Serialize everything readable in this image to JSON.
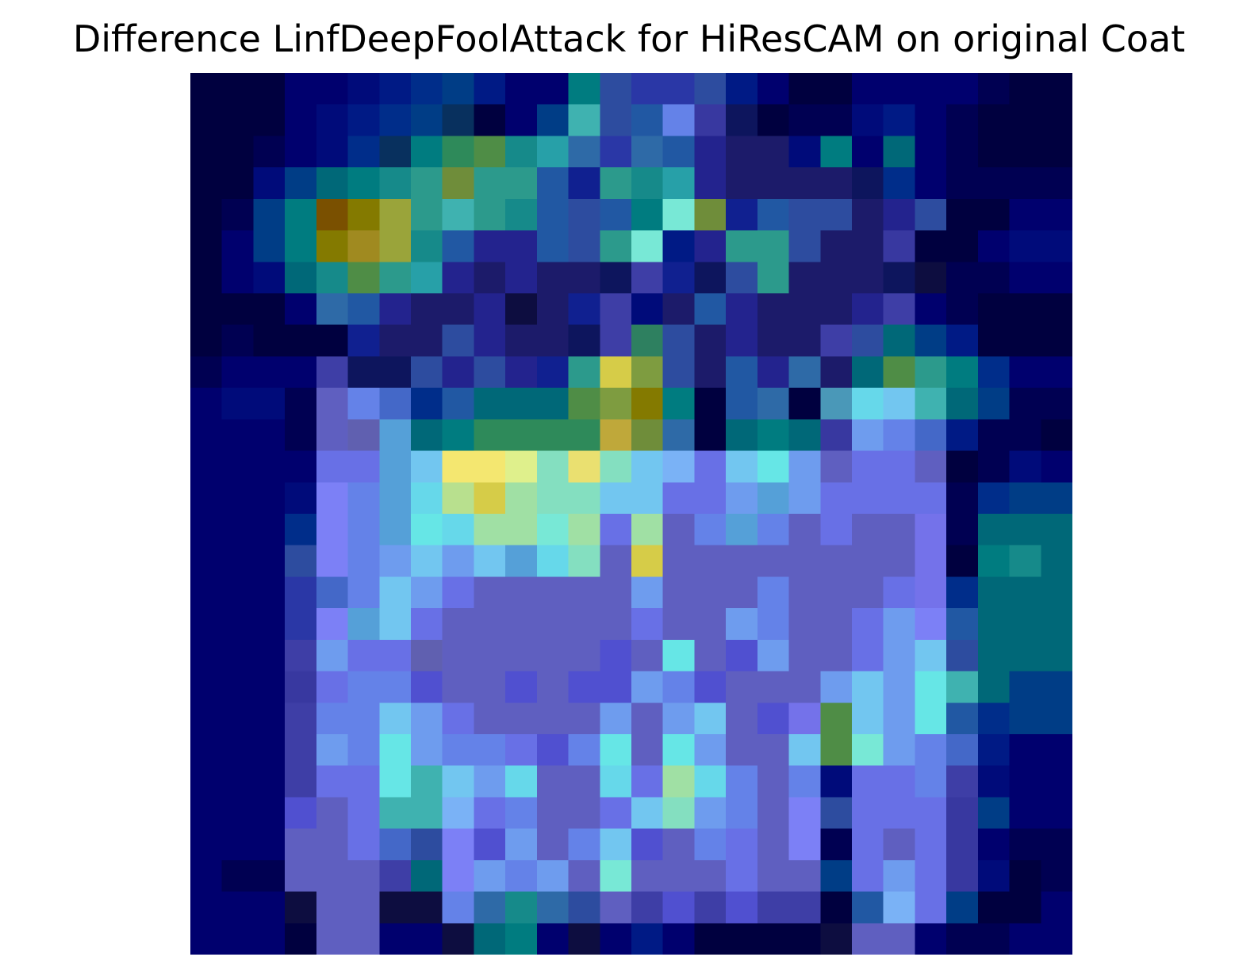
{
  "figure": {
    "title": "Difference LinfDeepFoolAttack for HiResCAM on original Coat"
  },
  "colors": {
    "background": "#ffffff",
    "colormap": "jet overlay (dark navy to blue, cyan, green, yellow, orange)"
  },
  "chart_data": {
    "type": "heatmap",
    "title": "Difference LinfDeepFoolAttack for HiResCAM on original Coat",
    "rows": 28,
    "cols": 28,
    "axes": "off",
    "grid": false,
    "legend": "none",
    "palette": {
      "a": "#00003f",
      "b": "#000052",
      "c": "#00006e",
      "d": "#000b7a",
      "e": "#001a85",
      "f": "#002d8a",
      "g": "#003d86",
      "h": "#08305e",
      "i": "#0d155d",
      "j": "#1c1b6a",
      "k": "#23238e",
      "l": "#2a37a6",
      "m": "#2d4c9f",
      "n": "#2158a3",
      "o": "#2e6aa7",
      "p": "#006878",
      "q": "#007c80",
      "r": "#168a8a",
      "s": "#2c9a8c",
      "t": "#27a0a8",
      "u": "#3fb2b0",
      "v": "#2e8a5a",
      "w": "#4f8d46",
      "x": "#6f8d3a",
      "y": "#847a00",
      "z": "#7a5000",
      "A": "#a08a20",
      "B": "#9aa43a",
      "C": "#bfa83a",
      "D": "#d6cc48",
      "E": "#eae070",
      "F": "#f4e770",
      "G": "#dff08c",
      "H": "#b8e08e",
      "I": "#a0e0a4",
      "J": "#84dfc0",
      "K": "#78e8d6",
      "L": "#66e6e6",
      "M": "#66d8ea",
      "N": "#72c6f0",
      "O": "#7ab2f6",
      "P": "#6e9cee",
      "Q": "#6482e8",
      "R": "#6870e6",
      "S": "#7472ea",
      "T": "#7c80f6",
      "U": "#8a8cf8",
      "V": "#5f5fc0",
      "W": "#6060b0",
      "X": "#5050d0",
      "Y": "#4848b8",
      "Z": "#3e3ea6",
      "1": "#3838a0",
      "2": "#4468c8",
      "3": "#55a0d8",
      "4": "#4a98b8",
      "5": "#5aa86a",
      "6": "#eaad70",
      "7": "#7e9c40",
      "8": "#2e8060",
      "9": "#102090",
      "0": "#0d0d40"
    },
    "values": [
      "aaaccdefgeccqmllmecaaccccbaa",
      "aaacdefghacgumnQ1iabbdecbaaa",
      "aabcdfhqvwrtolonkjjdqcpcbaaa",
      "aadgpqrsxssn9srtkjjjjifcbbbb",
      "abgqzyBsusrnmnqKx9nmmjkmaacc",
      "acgqyABrnkknmsKekssmjj1aacdd",
      "acdprwstkjkjjiZ9imsjjji0bbcc",
      "aaaconkjjk0j9ZdjnkjjjkZcbaaa",
      "abaaa9jjmkjjiZ8mjkjjZmpgeaaa",
      "bcccZiimkmk9sD7mjnkojpwsqfcc",
      "cddbVQ2fnpppw7yqanoa4MNupgbb",
      "cccbVW3pqvvvvCxoapqp1PQ2ebba",
      "ccccRR3NFFGJEJNORNLPVRRVabdc",
      "cccdTQ3MHDIJJNNRRP3PRRRRbfgg",
      "cccfTQ3LMIIKIRIVQ3QVRVVSbppp",
      "cccmTQPNPN3MJVDVVVVVVVVSaqrp",
      "cccl2QNPRVVVVVPVVVQVVVRSfppp",
      "ccclT3NRVVVVVVRVVPQVVRPTnppp",
      "cccZPRRWVVVVVXVLVXPVVRPNmppp",
      "ccc1RQQXVVXVXXPQXVVVPNPLupgg",
      "cccZQQNPRVVVVPVPNVXSwNPLnfgg",
      "cccZPQLPQQRXQLVLPVVNwKPQ2ecc",
      "cccZRRLuNPMVVMRIMQVQdRRQZdcc",
      "cccXVRuuORQVVRNJPQVTmRRR1gcc",
      "cccVVR2mTXPVQNXVQRVTbRVR1cbb",
      "cbbVVVZpTPQPVKVVVRVVgRPR1dab",
      "ccc0VV00QoromVZXZXZZanORgaac",
      "cccaVVcc0pqc0cecaaaa0VVcbbcc"
    ]
  }
}
